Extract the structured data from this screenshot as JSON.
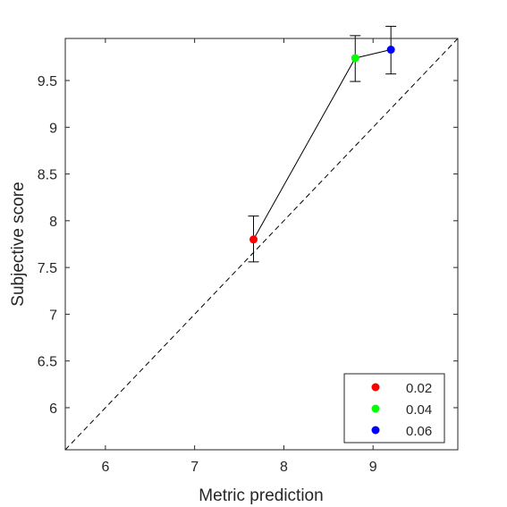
{
  "chart_data": {
    "type": "scatter",
    "xlabel": "Metric prediction",
    "ylabel": "Subjective score",
    "xlim": [
      5.55,
      9.95
    ],
    "ylim": [
      5.55,
      9.95
    ],
    "x_ticks": [
      6,
      7,
      8,
      9
    ],
    "y_ticks": [
      6,
      6.5,
      7,
      7.5,
      8,
      8.5,
      9,
      9.5
    ],
    "y_tick_labels": [
      "6",
      "6.5",
      "7",
      "7.5",
      "8",
      "8.5",
      "9",
      "9.5"
    ],
    "x_tick_labels": [
      "6",
      "7",
      "8",
      "9"
    ],
    "grid": false,
    "reference_line": "identity (dashed)",
    "connecting_line": true,
    "legend_position": "bottom-right",
    "points": [
      {
        "name": "0.02",
        "x": 7.66,
        "y": 7.8,
        "err_low": 7.56,
        "err_high": 8.05,
        "color": "#ff0000"
      },
      {
        "name": "0.04",
        "x": 8.8,
        "y": 9.74,
        "err_low": 9.49,
        "err_high": 9.98,
        "color": "#00ff00"
      },
      {
        "name": "0.06",
        "x": 9.2,
        "y": 9.83,
        "err_low": 9.57,
        "err_high": 10.08,
        "color": "#0000ff"
      }
    ],
    "legend": [
      "0.02",
      "0.04",
      "0.06"
    ]
  }
}
